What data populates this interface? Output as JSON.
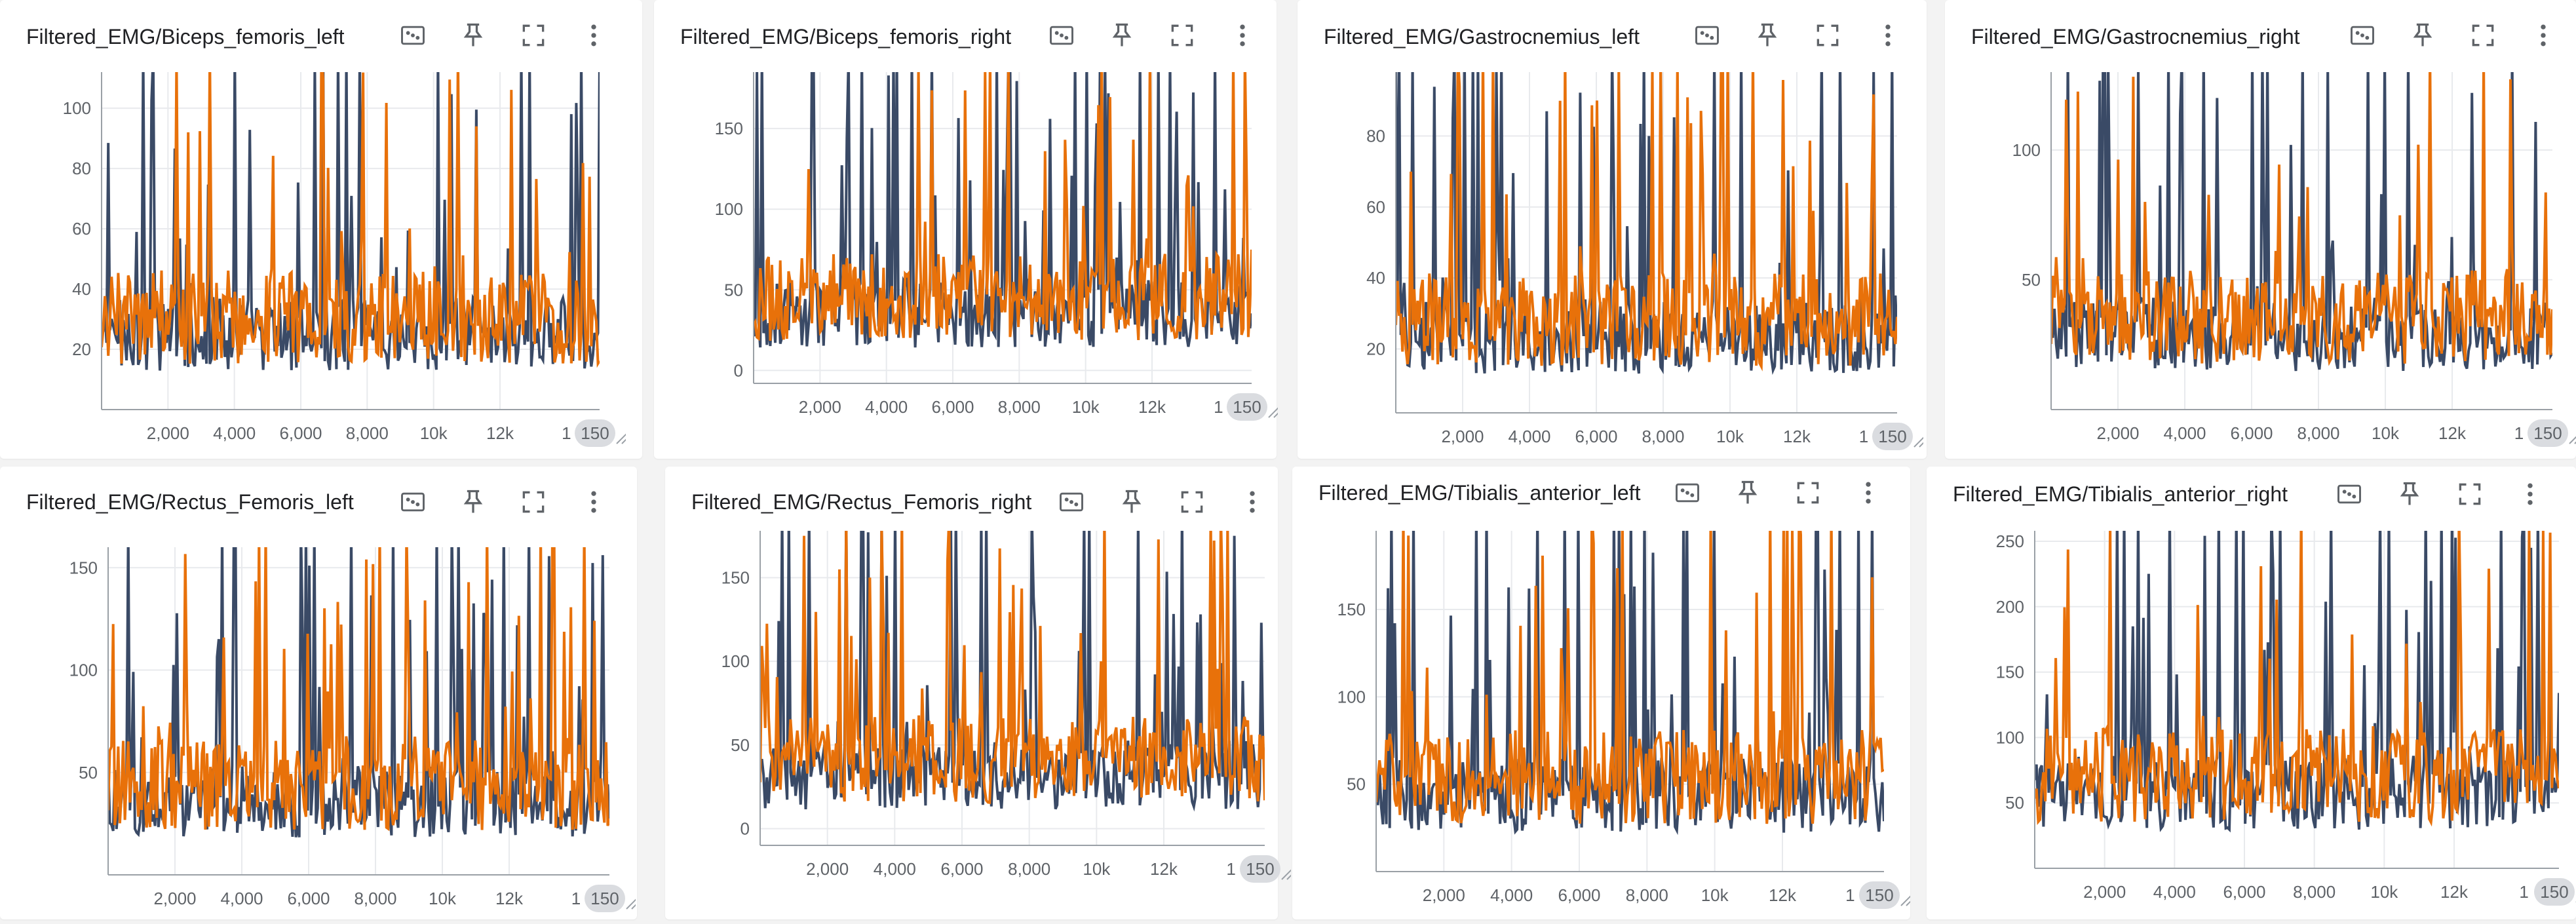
{
  "series_colors": {
    "run_a": "#3a4a66",
    "run_b": "#e8710a"
  },
  "toolbar_icons": [
    "data-selection-icon",
    "pin-icon",
    "fullscreen-icon",
    "more-vert-icon"
  ],
  "x_ticks": [
    "2,000",
    "4,000",
    "6,000",
    "8,000",
    "10k",
    "12k"
  ],
  "x_last_label": "1",
  "x_chip_label": "150",
  "cards": [
    {
      "title": "Filtered_EMG/Biceps_femoris_left",
      "chart_data": {
        "type": "line",
        "y_ticks": [
          "20",
          "40",
          "60",
          "80",
          "100"
        ],
        "ylim": [
          0,
          112
        ],
        "xlim": [
          0,
          15000
        ]
      }
    },
    {
      "title": "Filtered_EMG/Biceps_femoris_right",
      "chart_data": {
        "type": "line",
        "y_ticks": [
          "0",
          "50",
          "100",
          "150"
        ],
        "ylim": [
          -8,
          185
        ],
        "xlim": [
          0,
          15000
        ]
      }
    },
    {
      "title": "Filtered_EMG/Gastrocnemius_left",
      "chart_data": {
        "type": "line",
        "y_ticks": [
          "20",
          "40",
          "60",
          "80"
        ],
        "ylim": [
          2,
          98
        ],
        "xlim": [
          0,
          15000
        ]
      }
    },
    {
      "title": "Filtered_EMG/Gastrocnemius_right",
      "chart_data": {
        "type": "line",
        "y_ticks": [
          "50",
          "100"
        ],
        "ylim": [
          0,
          130
        ],
        "xlim": [
          0,
          15000
        ]
      }
    },
    {
      "title": "Filtered_EMG/Rectus_Femoris_left",
      "chart_data": {
        "type": "line",
        "y_ticks": [
          "50",
          "100",
          "150"
        ],
        "ylim": [
          0,
          160
        ],
        "xlim": [
          0,
          15000
        ]
      }
    },
    {
      "title": "Filtered_EMG/Rectus_Femoris_right",
      "chart_data": {
        "type": "line",
        "y_ticks": [
          "0",
          "50",
          "100",
          "150"
        ],
        "ylim": [
          -10,
          178
        ],
        "xlim": [
          0,
          15000
        ]
      }
    },
    {
      "title": "Filtered_EMG/Tibialis_anterior_left",
      "chart_data": {
        "type": "line",
        "y_ticks": [
          "50",
          "100",
          "150"
        ],
        "ylim": [
          0,
          195
        ],
        "xlim": [
          0,
          15000
        ]
      }
    },
    {
      "title": "Filtered_EMG/Tibialis_anterior_right",
      "chart_data": {
        "type": "line",
        "y_ticks": [
          "50",
          "100",
          "150",
          "200",
          "250"
        ],
        "ylim": [
          0,
          258
        ],
        "xlim": [
          0,
          15000
        ]
      }
    }
  ]
}
